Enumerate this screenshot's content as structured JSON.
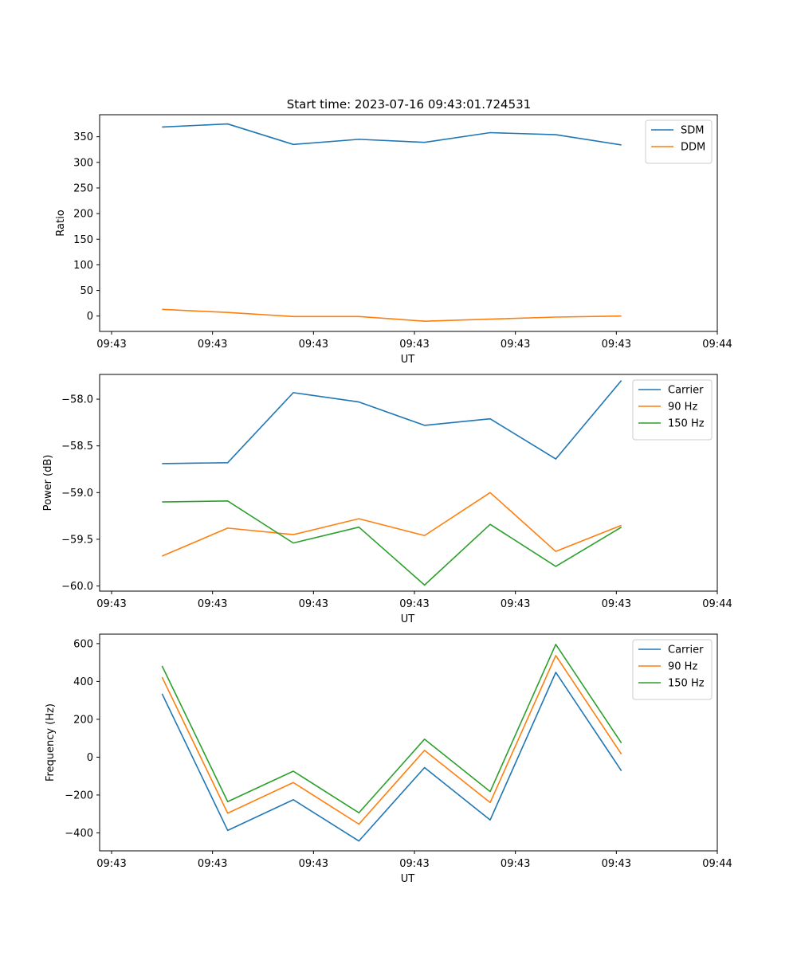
{
  "figure_title": "Start time: 2023-07-16 09:43:01.724531",
  "chart_data": [
    {
      "type": "line",
      "xlabel": "UT",
      "ylabel": "Ratio",
      "xlim": [
        0,
        6.0
      ],
      "x_ticks": [
        0,
        1,
        2,
        3,
        4,
        5,
        6
      ],
      "x_tick_labels": [
        "09:43",
        "09:43",
        "09:43",
        "09:43",
        "09:43",
        "09:43",
        "09:44"
      ],
      "ylim": [
        -30,
        393
      ],
      "y_ticks": [
        0,
        50,
        100,
        150,
        200,
        250,
        300,
        350
      ],
      "y_tick_labels": [
        "0",
        "50",
        "100",
        "150",
        "200",
        "250",
        "300",
        "350"
      ],
      "legend_position": "top-right",
      "x": [
        0.5,
        1.15,
        1.8,
        2.45,
        3.1,
        3.75,
        4.4,
        5.05
      ],
      "series": [
        {
          "name": "SDM",
          "color": "#1f77b4",
          "values": [
            369,
            375,
            335,
            345,
            339,
            358,
            354,
            334
          ]
        },
        {
          "name": "DDM",
          "color": "#ff7f0e",
          "values": [
            13,
            7,
            -1,
            -1,
            -10,
            -6,
            -2,
            0
          ]
        }
      ]
    },
    {
      "type": "line",
      "xlabel": "UT",
      "ylabel": "Power (dB)",
      "xlim": [
        0,
        6.0
      ],
      "x_ticks": [
        0,
        1,
        2,
        3,
        4,
        5,
        6
      ],
      "x_tick_labels": [
        "09:43",
        "09:43",
        "09:43",
        "09:43",
        "09:43",
        "09:43",
        "09:44"
      ],
      "ylim": [
        -60.055,
        -57.735
      ],
      "y_ticks": [
        -60.0,
        -59.5,
        -59.0,
        -58.5,
        -58.0
      ],
      "y_tick_labels": [
        "−60.0",
        "−59.5",
        "−59.0",
        "−58.5",
        "−58.0"
      ],
      "legend_position": "top-right",
      "x": [
        0.5,
        1.15,
        1.8,
        2.45,
        3.1,
        3.75,
        4.4,
        5.05
      ],
      "series": [
        {
          "name": "Carrier",
          "color": "#1f77b4",
          "values": [
            -58.69,
            -58.68,
            -57.93,
            -58.03,
            -58.28,
            -58.21,
            -58.64,
            -57.8
          ]
        },
        {
          "name": "90 Hz",
          "color": "#ff7f0e",
          "values": [
            -59.68,
            -59.38,
            -59.45,
            -59.28,
            -59.46,
            -59.0,
            -59.63,
            -59.35
          ]
        },
        {
          "name": "150 Hz",
          "color": "#2ca02c",
          "values": [
            -59.1,
            -59.09,
            -59.54,
            -59.37,
            -59.99,
            -59.34,
            -59.79,
            -59.37
          ]
        }
      ]
    },
    {
      "type": "line",
      "xlabel": "UT",
      "ylabel": "Frequency (Hz)",
      "xlim": [
        0,
        6.0
      ],
      "x_ticks": [
        0,
        1,
        2,
        3,
        4,
        5,
        6
      ],
      "x_tick_labels": [
        "09:43",
        "09:43",
        "09:43",
        "09:43",
        "09:43",
        "09:43",
        "09:44"
      ],
      "ylim": [
        -495,
        650
      ],
      "y_ticks": [
        -400,
        -200,
        0,
        200,
        400,
        600
      ],
      "y_tick_labels": [
        "−400",
        "−200",
        "0",
        "200",
        "400",
        "600"
      ],
      "legend_position": "top-right",
      "x": [
        0.5,
        1.15,
        1.8,
        2.45,
        3.1,
        3.75,
        4.4,
        5.05
      ],
      "series": [
        {
          "name": "Carrier",
          "color": "#1f77b4",
          "values": [
            335,
            -387,
            -225,
            -443,
            -55,
            -332,
            448,
            -72
          ]
        },
        {
          "name": "90 Hz",
          "color": "#ff7f0e",
          "values": [
            423,
            -296,
            -134,
            -354,
            36,
            -240,
            537,
            16
          ]
        },
        {
          "name": "150 Hz",
          "color": "#2ca02c",
          "values": [
            482,
            -235,
            -74,
            -294,
            95,
            -182,
            596,
            75
          ]
        }
      ]
    }
  ]
}
